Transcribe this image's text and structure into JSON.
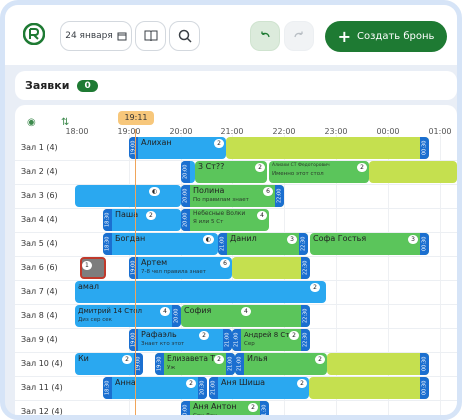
{
  "toolbar": {
    "date_label": "24 января",
    "create_label": "Создать бронь"
  },
  "requests": {
    "label": "Заявки",
    "count": "0"
  },
  "timeline": {
    "current_time": "19:11",
    "ticks": [
      "18:00",
      "19:00",
      "20:00",
      "21:00",
      "22:00",
      "23:00",
      "00:00",
      "01:00"
    ]
  },
  "rows": [
    {
      "label": "Зал 1 (4)"
    },
    {
      "label": "Зал 2 (4)"
    },
    {
      "label": "Зал 3 (6)"
    },
    {
      "label": "Зал 4 (4)"
    },
    {
      "label": "Зал 5 (4)"
    },
    {
      "label": "Зал 6 (6)"
    },
    {
      "label": "Зал 7 (4)"
    },
    {
      "label": "Зал 8 (4)"
    },
    {
      "label": "Зал 9 (4)"
    },
    {
      "label": "Зал 10 (4)"
    },
    {
      "label": "Зал 11 (4)"
    },
    {
      "label": "Зал 12 (4)"
    }
  ],
  "reservations": {
    "r1": {
      "name": "Алихан",
      "guests": "2",
      "start": "19:00",
      "end": "00:30"
    },
    "r2a": {
      "name": "3 Ст??",
      "guests": "2",
      "start": "20:00"
    },
    "r2b": {
      "name": "Алиахи СТ Федоторович",
      "sub": "Именно этот стол",
      "guests": "2"
    },
    "r3": {
      "name": "Полина",
      "sub": "По правилам знает",
      "guests": "6",
      "start": "20:00",
      "end": "22:00"
    },
    "r4a": {
      "name": "Паша",
      "guests": "2",
      "start": "18:30"
    },
    "r4b": {
      "name": "Небесные Волки",
      "sub": "Я или 5 Ст",
      "guests": "4",
      "start": "20:00"
    },
    "r5a": {
      "name": "Богдан",
      "start": "18:30"
    },
    "r5b": {
      "name": "Данил",
      "guests": "3",
      "start": "21:00",
      "end": "22:30"
    },
    "r5c": {
      "name": "Софа Гостья",
      "guests": "3",
      "end": "00:30"
    },
    "r6a": {
      "guests": "1"
    },
    "r6b": {
      "name": "Артем",
      "sub": "7-8 чел правила знает",
      "guests": "6",
      "start": "19:00",
      "end": "22:30"
    },
    "r7": {
      "name": "амал",
      "guests": "2"
    },
    "r8a": {
      "name": "Дмитрий 14 Стол",
      "sub": "Диз сер сек",
      "guests": "4",
      "end": "20:00"
    },
    "r8b": {
      "name": "София",
      "guests": "4",
      "end": "22:30"
    },
    "r9a": {
      "name": "Рафаэль",
      "sub": "Знает кто этот",
      "guests": "2",
      "start": "19:00",
      "end": "21:00"
    },
    "r9b": {
      "name": "Андрей 8 Стол",
      "sub": "Сер",
      "guests": "2",
      "start": "21:00",
      "end": "22:30"
    },
    "r10a": {
      "name": "Ки",
      "guests": "2",
      "end": "19:00"
    },
    "r10b": {
      "name": "Елизавета Тг",
      "sub": "Уж",
      "guests": "2",
      "start": "19:30",
      "end": "21:00"
    },
    "r10c": {
      "name": "Илья",
      "guests": "2",
      "start": "21:00",
      "end": "00:30"
    },
    "r11a": {
      "name": "Анна",
      "guests": "2",
      "start": "18:30",
      "end": "20:30"
    },
    "r11b": {
      "name": "Аня Шиша",
      "guests": "2",
      "start": "21:00",
      "end": "00:30"
    },
    "r12": {
      "name": "Аня Антон",
      "sub": "Сен Дан",
      "guests": "2",
      "start": "20:00",
      "end": "21:30"
    }
  },
  "colors": {
    "brand": "#1e7a33",
    "blue": "#2aa8f0",
    "green": "#5bc55b",
    "lime": "#c5e04f",
    "now": "#f0a55a"
  }
}
